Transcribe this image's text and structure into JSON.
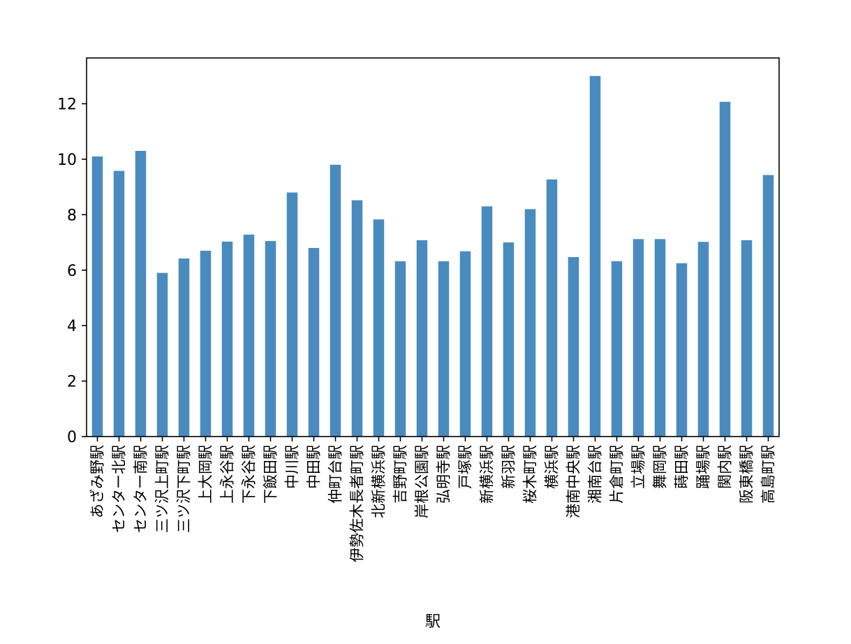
{
  "chart_data": {
    "type": "bar",
    "xlabel": "駅",
    "ylabel": "",
    "ylim": [
      0,
      13.65
    ],
    "yticks": [
      "0",
      "2",
      "4",
      "6",
      "8",
      "10",
      "12"
    ],
    "grid": false,
    "legend": "none",
    "bar_color": "#4a8bbf",
    "categories": [
      "あざみ野駅",
      "センター北駅",
      "センター南駅",
      "三ツ沢上町駅",
      "三ツ沢下町駅",
      "上大岡駅",
      "上永谷駅",
      "下永谷駅",
      "下飯田駅",
      "中川駅",
      "中田駅",
      "仲町台駅",
      "伊勢佐木長者町駅",
      "北新横浜駅",
      "吉野町駅",
      "岸根公園駅",
      "弘明寺駅",
      "戸塚駅",
      "新横浜駅",
      "新羽駅",
      "桜木町駅",
      "横浜駅",
      "港南中央駅",
      "湘南台駅",
      "片倉町駅",
      "立場駅",
      "舞岡駅",
      "蒔田駅",
      "踊場駅",
      "関内駅",
      "阪東橋駅",
      "高島町駅"
    ],
    "values": [
      10.1,
      9.58,
      10.3,
      5.9,
      6.42,
      6.7,
      7.03,
      7.28,
      7.05,
      8.8,
      6.8,
      9.8,
      8.52,
      7.83,
      6.32,
      7.08,
      6.32,
      6.68,
      8.3,
      7.0,
      8.2,
      9.27,
      6.47,
      13.0,
      6.32,
      7.12,
      7.12,
      6.25,
      7.02,
      12.07,
      7.08,
      9.43
    ]
  }
}
